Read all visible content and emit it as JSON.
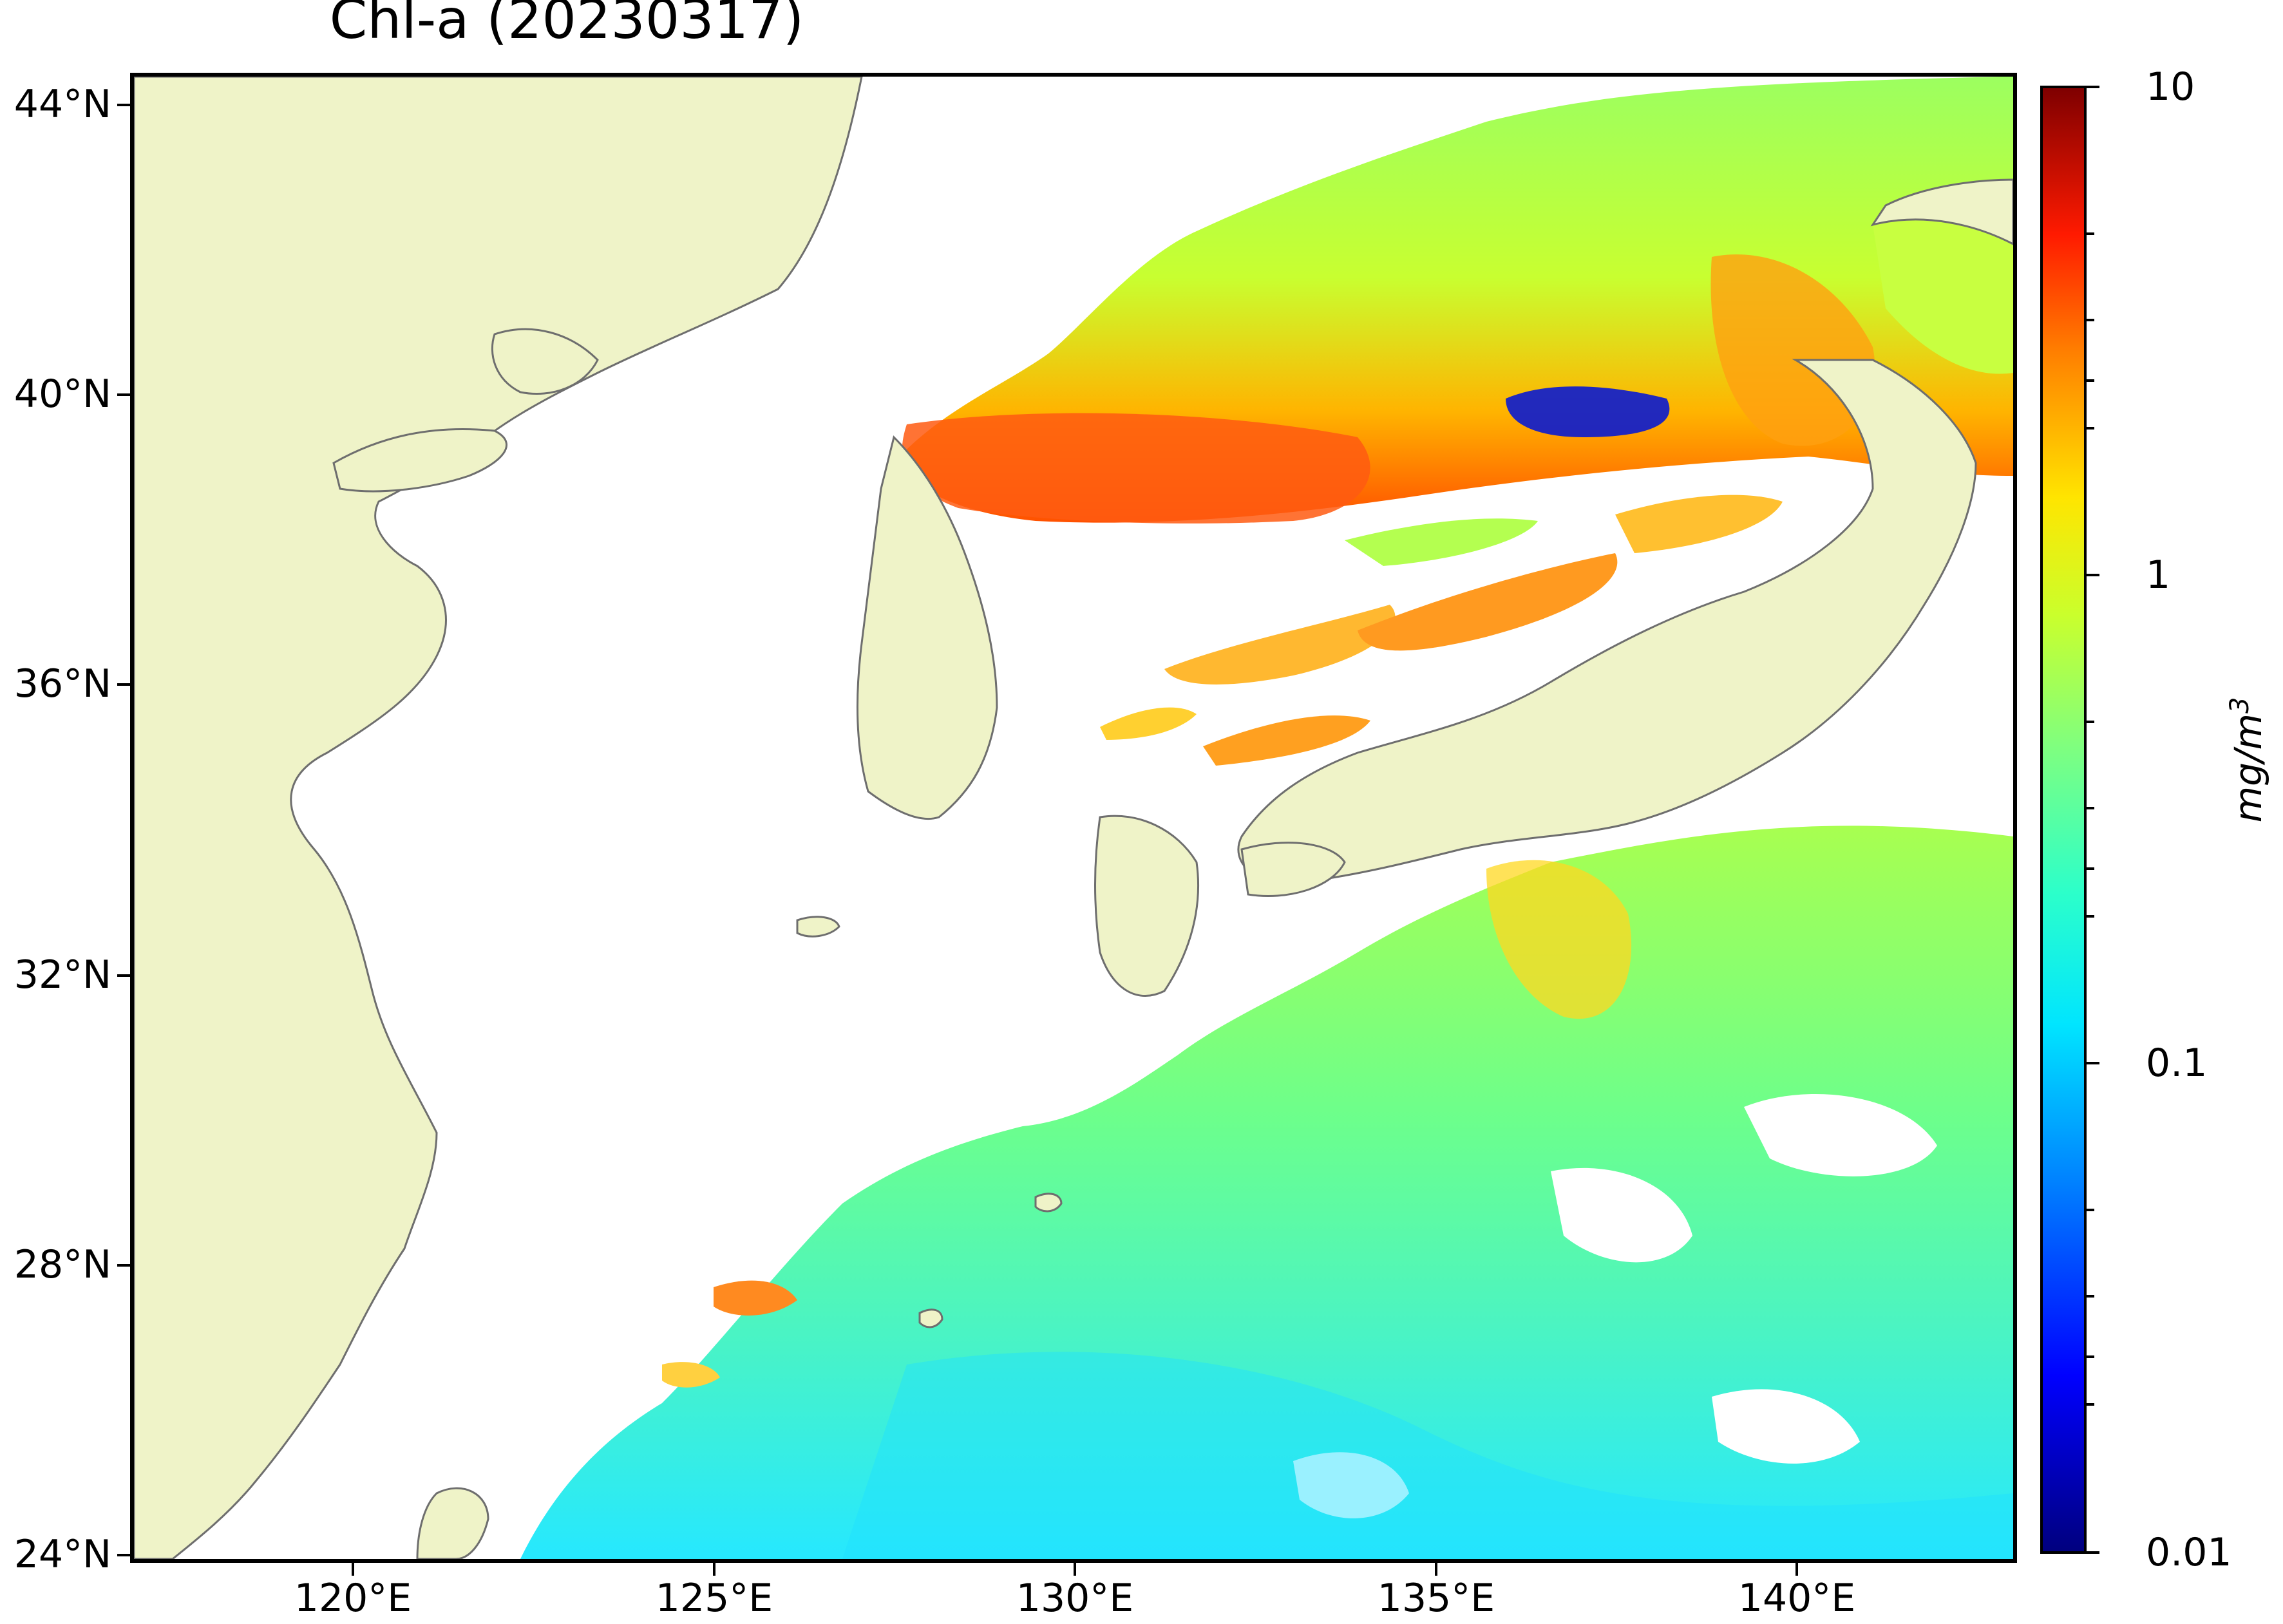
{
  "title": "Chl-a (20230317)",
  "colors": {
    "land": "#eff3c8",
    "coast": "#6e6e6e",
    "ocean_nodata": "#ffffff"
  },
  "axes": {
    "lat_labels": [
      "44°N",
      "40°N",
      "36°N",
      "32°N",
      "28°N",
      "24°N"
    ],
    "lon_labels": [
      "120°E",
      "125°E",
      "130°E",
      "135°E",
      "140°E"
    ]
  },
  "colorbar": {
    "colormap": "jet",
    "scale": "log",
    "labels": [
      "10",
      "1",
      "0.1",
      "0.01"
    ],
    "unit": "mg/m",
    "unit_exponent": "3"
  }
}
